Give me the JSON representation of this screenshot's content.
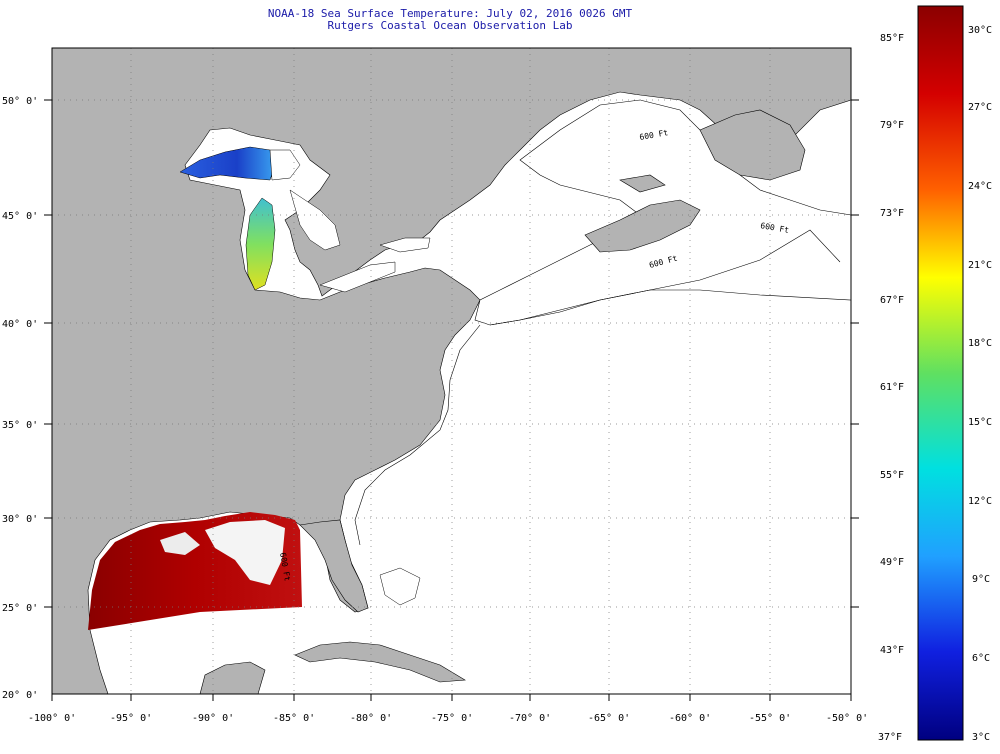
{
  "title": {
    "line1": "NOAA-18 Sea Surface Temperature:  July 02, 2016 0026 GMT",
    "line2": "Rutgers Coastal Ocean Observation Lab"
  },
  "map": {
    "lat_labels": [
      "50° 0'",
      "45° 0'",
      "40° 0'",
      "35° 0'",
      "30° 0'",
      "25° 0'",
      "20° 0'"
    ],
    "lon_labels": [
      "-100° 0'",
      "-95° 0'",
      "-90° 0'",
      "-85° 0'",
      "-80° 0'",
      "-75° 0'",
      "-70° 0'",
      "-65° 0'",
      "-60° 0'",
      "-55° 0'",
      "-50° 0'"
    ],
    "contour_labels": [
      "600 Ft",
      "600 Ft",
      "600 Ft",
      "600 Ft"
    ],
    "colors": {
      "land": "#b3b3b3",
      "ocean_no_data": "#ffffff",
      "gulf_warm": "#a00000",
      "lake_cold": "#1a5adc"
    }
  },
  "colorbar": {
    "fahrenheit_labels": [
      "85°F",
      "79°F",
      "73°F",
      "67°F",
      "61°F",
      "55°F",
      "49°F",
      "43°F",
      "37°F"
    ],
    "celsius_labels": [
      "30°C",
      "27°C",
      "24°C",
      "21°C",
      "18°C",
      "15°C",
      "12°C",
      "9°C",
      "6°C",
      "3°C"
    ]
  }
}
